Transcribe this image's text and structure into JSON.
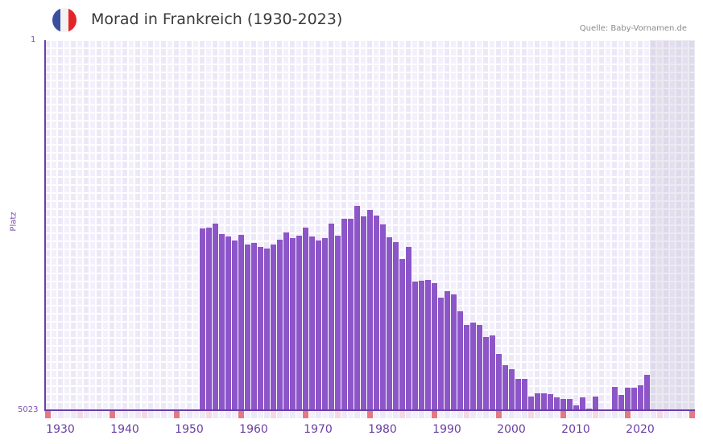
{
  "header": {
    "title": "Morad in Frankreich (1930-2023)",
    "source": "Quelle: Baby-Vornamen.de",
    "flag": {
      "icon": "france-flag-icon",
      "colors": [
        "#3a4fa0",
        "#f2f2f2",
        "#e3242b"
      ]
    }
  },
  "axes": {
    "y_top_label": "1",
    "y_bottom_label": "5023",
    "y_title": "Platz",
    "x_ticks": [
      "1930",
      "1940",
      "1950",
      "1960",
      "1970",
      "1980",
      "1990",
      "2000",
      "2010",
      "2020"
    ]
  },
  "colors": {
    "bar": "#8c55c8",
    "axis": "#6b3fa8",
    "grid_a": "#ede8f8",
    "grid_b": "#f3f0fc",
    "marker_decade": "#e57880",
    "marker_half": "#f5d8e0",
    "future_shade": "#e4e0ee"
  },
  "chart_data": {
    "type": "bar",
    "title": "Morad in Frankreich (1930-2023)",
    "xlabel": "",
    "ylabel": "Platz",
    "y_inverted": true,
    "ylim": [
      5023,
      1
    ],
    "x_range": [
      1928,
      2028
    ],
    "future_shaded_from": 2022,
    "grid": true,
    "categories": [
      1952,
      1953,
      1954,
      1955,
      1956,
      1957,
      1958,
      1959,
      1960,
      1961,
      1962,
      1963,
      1964,
      1965,
      1966,
      1967,
      1968,
      1969,
      1970,
      1971,
      1972,
      1973,
      1974,
      1975,
      1976,
      1977,
      1978,
      1979,
      1980,
      1981,
      1982,
      1983,
      1984,
      1985,
      1986,
      1987,
      1988,
      1989,
      1990,
      1991,
      1992,
      1993,
      1994,
      1995,
      1996,
      1997,
      1998,
      1999,
      2000,
      2001,
      2002,
      2003,
      2004,
      2005,
      2006,
      2007,
      2008,
      2009,
      2010,
      2011,
      2012,
      2013,
      2014,
      2015,
      2016,
      2017,
      2018,
      2019,
      2020,
      2021
    ],
    "values": [
      2552,
      2541,
      2490,
      2632,
      2662,
      2719,
      2640,
      2771,
      2749,
      2807,
      2829,
      2771,
      2709,
      2610,
      2683,
      2651,
      2541,
      2662,
      2719,
      2687,
      2490,
      2654,
      2425,
      2425,
      2250,
      2392,
      2305,
      2381,
      2501,
      2676,
      2741,
      2970,
      2807,
      3276,
      3265,
      3254,
      3298,
      3494,
      3407,
      3451,
      3680,
      3866,
      3833,
      3866,
      4029,
      4008,
      4259,
      4412,
      4466,
      4597,
      4597,
      4837,
      4794,
      4794,
      4804,
      4848,
      4870,
      4870,
      4957,
      4848,
      5001,
      4837,
      null,
      null,
      4706,
      4815,
      4717,
      4717,
      4684,
      4543
    ]
  }
}
